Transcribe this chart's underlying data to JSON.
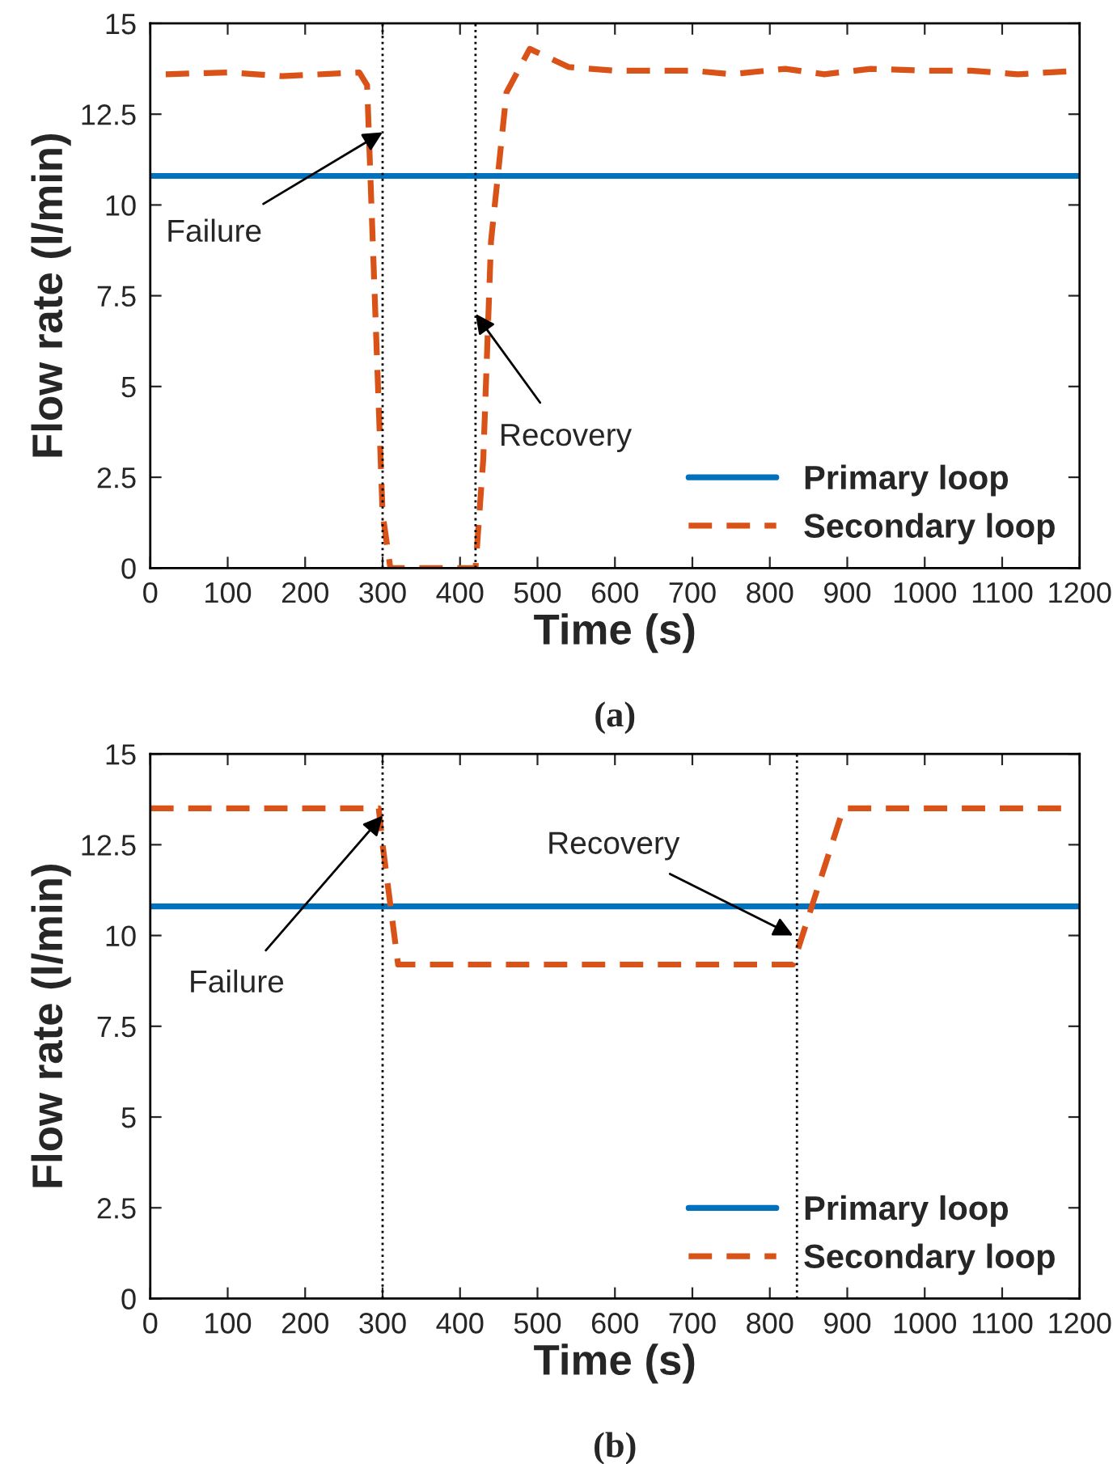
{
  "chart_data": [
    {
      "type": "line",
      "title": "(a)",
      "xlabel": "Time (s)",
      "ylabel": "Flow rate (l/min)",
      "xlim": [
        0,
        1200
      ],
      "xticks": [
        0,
        100,
        200,
        300,
        400,
        500,
        600,
        700,
        800,
        900,
        1000,
        1100,
        1200
      ],
      "ylim": [
        0,
        15
      ],
      "yticks": [
        0,
        2.5,
        5,
        7.5,
        10,
        12.5,
        15
      ],
      "grid": false,
      "legend": "bottom right",
      "series": [
        {
          "name": "Primary loop",
          "color": "#0072bd",
          "line_style": "solid",
          "x": [
            0,
            1200
          ],
          "values": [
            10.8,
            10.8
          ]
        },
        {
          "name": "Secondary loop",
          "color": "#d95319",
          "line_style": "dashed",
          "x": [
            20,
            100,
            170,
            270,
            280,
            300,
            310,
            420,
            430,
            440,
            460,
            490,
            540,
            600,
            700,
            750,
            820,
            870,
            930,
            1000,
            1060,
            1120,
            1200
          ],
          "values": [
            13.6,
            13.65,
            13.55,
            13.65,
            13.3,
            1.5,
            0,
            0,
            3,
            9,
            13.1,
            14.3,
            13.8,
            13.7,
            13.7,
            13.6,
            13.75,
            13.6,
            13.75,
            13.7,
            13.7,
            13.6,
            13.7
          ]
        }
      ],
      "ref_lines": [
        {
          "axis": "x",
          "value": 300,
          "color": "#000000",
          "line_style": "dotted"
        },
        {
          "axis": "x",
          "value": 420,
          "color": "#000000",
          "line_style": "dotted"
        }
      ],
      "annotations": [
        {
          "text": "Failure",
          "x": 300,
          "y": 12
        },
        {
          "text": "Recovery",
          "x": 420,
          "y": 7
        }
      ]
    },
    {
      "type": "line",
      "title": "(b)",
      "xlabel": "Time (s)",
      "ylabel": "Flow rate (l/min)",
      "xlim": [
        0,
        1200
      ],
      "xticks": [
        0,
        100,
        200,
        300,
        400,
        500,
        600,
        700,
        800,
        900,
        1000,
        1100,
        1200
      ],
      "ylim": [
        0,
        15
      ],
      "yticks": [
        0,
        2.5,
        5,
        7.5,
        10,
        12.5,
        15
      ],
      "grid": false,
      "legend": "bottom right",
      "series": [
        {
          "name": "Primary loop",
          "color": "#0072bd",
          "line_style": "solid",
          "x": [
            0,
            1200
          ],
          "values": [
            10.8,
            10.8
          ]
        },
        {
          "name": "Secondary loop",
          "color": "#d95319",
          "line_style": "dashed",
          "x": [
            0,
            100,
            200,
            295,
            300,
            320,
            400,
            500,
            600,
            700,
            800,
            830,
            895,
            1000,
            1100,
            1180
          ],
          "values": [
            13.5,
            13.5,
            13.5,
            13.5,
            12.5,
            9.2,
            9.2,
            9.2,
            9.2,
            9.2,
            9.2,
            9.2,
            13.5,
            13.5,
            13.5,
            13.5
          ]
        }
      ],
      "ref_lines": [
        {
          "axis": "x",
          "value": 300,
          "color": "#000000",
          "line_style": "dotted"
        },
        {
          "axis": "x",
          "value": 835,
          "color": "#000000",
          "line_style": "dotted"
        }
      ],
      "annotations": [
        {
          "text": "Failure",
          "x": 300,
          "y": 13.3
        },
        {
          "text": "Recovery",
          "x": 830,
          "y": 10
        }
      ]
    }
  ]
}
